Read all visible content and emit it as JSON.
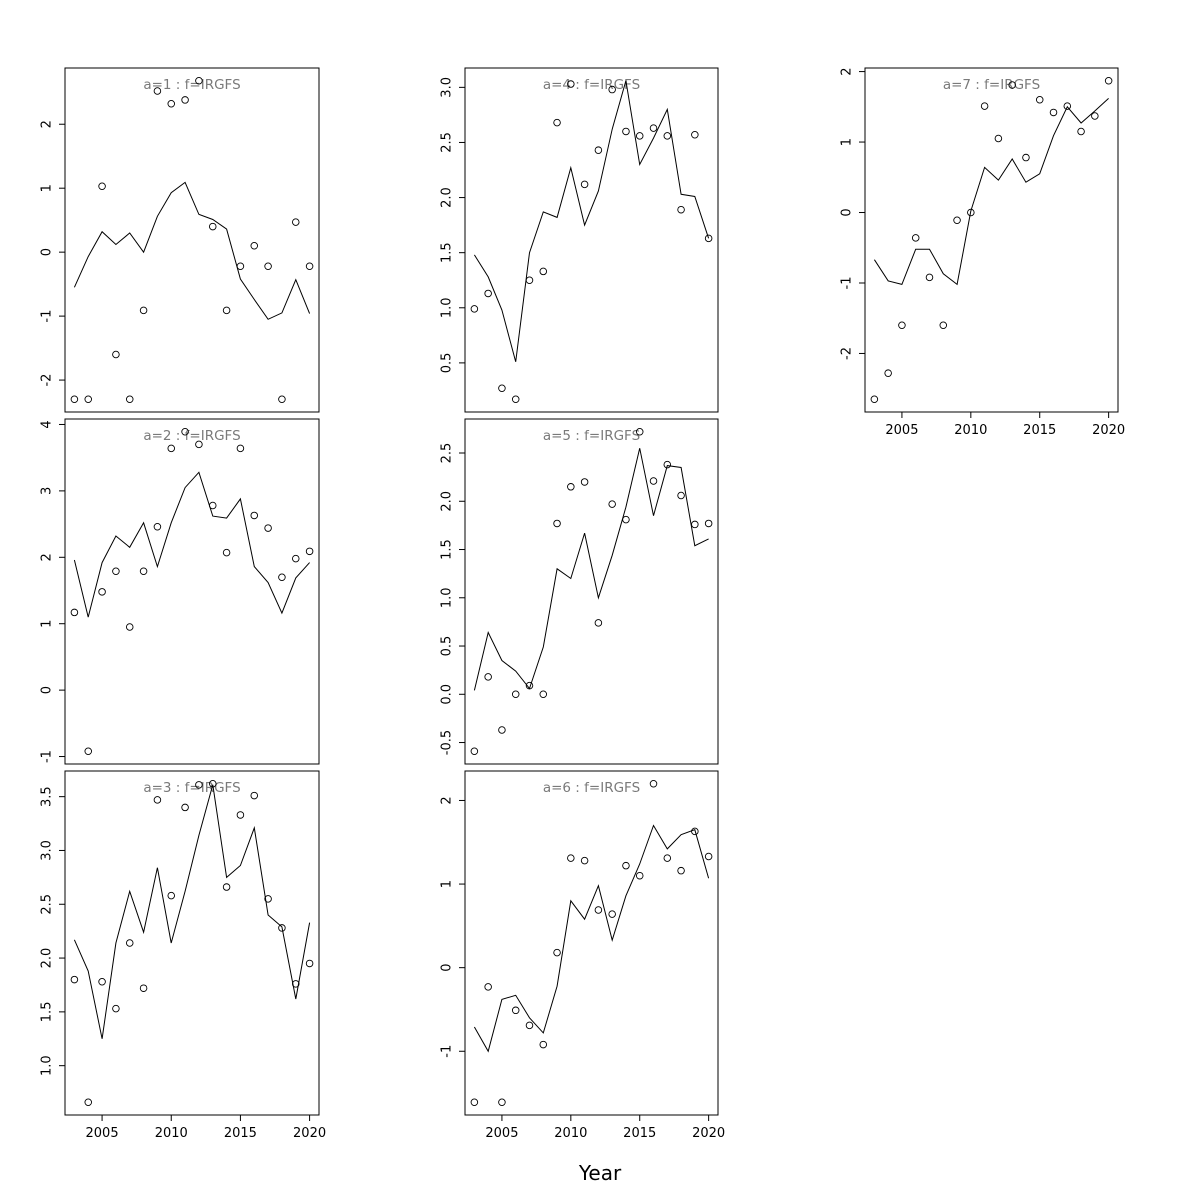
{
  "figure": {
    "xlabel": "Year"
  },
  "chart_data": [
    {
      "type": "scatter",
      "title": "a=1  :  f=IRGFS",
      "x": [
        2003,
        2004,
        2005,
        2006,
        2007,
        2008,
        2009,
        2010,
        2011,
        2012,
        2013,
        2014,
        2015,
        2016,
        2017,
        2018,
        2019,
        2020
      ],
      "series": [
        {
          "mode": "points",
          "values": [
            -2.3,
            -2.3,
            1.03,
            -1.6,
            -2.3,
            -0.91,
            2.52,
            2.32,
            2.38,
            2.68,
            0.4,
            -0.91,
            -0.22,
            0.1,
            -0.22,
            -2.3,
            0.47,
            -0.22
          ]
        },
        {
          "mode": "line",
          "values": [
            -0.55,
            -0.07,
            0.32,
            0.12,
            0.3,
            0.0,
            0.56,
            0.93,
            1.09,
            0.59,
            0.51,
            0.36,
            -0.42,
            -0.74,
            -1.05,
            -0.95,
            -0.43,
            -0.96
          ]
        }
      ],
      "ylim": [
        -2.3,
        2.68
      ],
      "xticks": [],
      "yticks": [
        -2,
        -1,
        0,
        1,
        2
      ],
      "show_xaxis": false
    },
    {
      "type": "scatter",
      "title": "a=2  :  f=IRGFS",
      "x": [
        2003,
        2004,
        2005,
        2006,
        2007,
        2008,
        2009,
        2010,
        2011,
        2012,
        2013,
        2014,
        2015,
        2016,
        2017,
        2018,
        2019,
        2020
      ],
      "series": [
        {
          "mode": "points",
          "values": [
            1.17,
            -0.92,
            1.48,
            1.79,
            0.95,
            1.79,
            2.46,
            3.64,
            3.89,
            3.7,
            2.78,
            2.07,
            3.64,
            2.63,
            2.44,
            1.7,
            1.98,
            2.09
          ]
        },
        {
          "mode": "line",
          "values": [
            1.96,
            1.1,
            1.92,
            2.32,
            2.15,
            2.52,
            1.86,
            2.52,
            3.05,
            3.28,
            2.62,
            2.59,
            2.88,
            1.86,
            1.62,
            1.16,
            1.69,
            1.92
          ]
        }
      ],
      "ylim": [
        -0.92,
        3.89
      ],
      "xticks": [],
      "yticks": [
        -1,
        0,
        1,
        2,
        3,
        4
      ],
      "show_xaxis": false
    },
    {
      "type": "scatter",
      "title": "a=3  :  f=IRGFS",
      "x": [
        2003,
        2004,
        2005,
        2006,
        2007,
        2008,
        2009,
        2010,
        2011,
        2012,
        2013,
        2014,
        2015,
        2016,
        2017,
        2018,
        2019,
        2020
      ],
      "series": [
        {
          "mode": "points",
          "values": [
            1.8,
            0.66,
            1.78,
            1.53,
            2.14,
            1.72,
            3.47,
            2.58,
            3.4,
            3.61,
            3.62,
            2.66,
            3.33,
            3.51,
            2.55,
            2.28,
            1.76,
            1.95
          ]
        },
        {
          "mode": "line",
          "values": [
            2.17,
            1.88,
            1.25,
            2.14,
            2.62,
            2.24,
            2.84,
            2.14,
            2.62,
            3.14,
            3.61,
            2.75,
            2.86,
            3.21,
            2.4,
            2.29,
            1.62,
            2.33
          ]
        }
      ],
      "ylim": [
        0.66,
        3.62
      ],
      "xticks": [
        2005,
        2010,
        2015,
        2020
      ],
      "yticks": [
        1.0,
        1.5,
        2.0,
        2.5,
        3.0,
        3.5
      ],
      "show_xaxis": true
    },
    {
      "type": "scatter",
      "title": "a=4  :  f=IRGFS",
      "x": [
        2003,
        2004,
        2005,
        2006,
        2007,
        2008,
        2009,
        2010,
        2011,
        2012,
        2013,
        2014,
        2015,
        2016,
        2017,
        2018,
        2019,
        2020
      ],
      "series": [
        {
          "mode": "points",
          "values": [
            0.99,
            1.13,
            0.27,
            0.17,
            1.25,
            1.33,
            2.68,
            3.03,
            2.12,
            2.43,
            2.98,
            2.6,
            2.56,
            2.63,
            2.56,
            1.89,
            2.57,
            1.63
          ]
        },
        {
          "mode": "line",
          "values": [
            1.48,
            1.28,
            0.98,
            0.51,
            1.5,
            1.87,
            1.82,
            2.27,
            1.75,
            2.06,
            2.62,
            3.06,
            2.3,
            2.54,
            2.8,
            2.03,
            2.01,
            1.63
          ]
        }
      ],
      "ylim": [
        0.17,
        3.06
      ],
      "xticks": [],
      "yticks": [
        0.5,
        1.0,
        1.5,
        2.0,
        2.5,
        3.0
      ],
      "show_xaxis": false
    },
    {
      "type": "scatter",
      "title": "a=5  :  f=IRGFS",
      "x": [
        2003,
        2004,
        2005,
        2006,
        2007,
        2008,
        2009,
        2010,
        2011,
        2012,
        2013,
        2014,
        2015,
        2016,
        2017,
        2018,
        2019,
        2020
      ],
      "series": [
        {
          "mode": "points",
          "values": [
            -0.59,
            0.18,
            -0.37,
            0.0,
            0.09,
            0.0,
            1.77,
            2.15,
            2.2,
            0.74,
            1.97,
            1.81,
            2.72,
            2.21,
            2.38,
            2.06,
            1.76,
            1.77
          ]
        },
        {
          "mode": "line",
          "values": [
            0.04,
            0.64,
            0.35,
            0.24,
            0.06,
            0.49,
            1.3,
            1.2,
            1.67,
            1.0,
            1.44,
            1.94,
            2.55,
            1.85,
            2.37,
            2.35,
            1.54,
            1.61
          ]
        }
      ],
      "ylim": [
        -0.59,
        2.72
      ],
      "xticks": [],
      "yticks": [
        -0.5,
        0.0,
        0.5,
        1.0,
        1.5,
        2.0,
        2.5
      ],
      "show_xaxis": false
    },
    {
      "type": "scatter",
      "title": "a=6  :  f=IRGFS",
      "x": [
        2003,
        2004,
        2005,
        2006,
        2007,
        2008,
        2009,
        2010,
        2011,
        2012,
        2013,
        2014,
        2015,
        2016,
        2017,
        2018,
        2019,
        2020
      ],
      "series": [
        {
          "mode": "points",
          "values": [
            -1.61,
            -0.23,
            -1.61,
            -0.51,
            -0.69,
            -0.92,
            0.18,
            1.31,
            1.28,
            0.69,
            0.64,
            1.22,
            1.1,
            2.2,
            1.31,
            1.16,
            1.63,
            1.33
          ]
        },
        {
          "mode": "line",
          "values": [
            -0.71,
            -1.0,
            -0.38,
            -0.33,
            -0.6,
            -0.78,
            -0.22,
            0.8,
            0.58,
            0.98,
            0.33,
            0.86,
            1.24,
            1.7,
            1.42,
            1.59,
            1.65,
            1.07
          ]
        }
      ],
      "ylim": [
        -1.61,
        2.2
      ],
      "xticks": [
        2005,
        2010,
        2015,
        2020
      ],
      "yticks": [
        -1,
        0,
        1,
        2
      ],
      "show_xaxis": true
    },
    {
      "type": "scatter",
      "title": "a=7  :  f=IRGFS",
      "x": [
        2003,
        2004,
        2005,
        2006,
        2007,
        2008,
        2009,
        2010,
        2011,
        2012,
        2013,
        2014,
        2015,
        2016,
        2017,
        2018,
        2019,
        2020
      ],
      "series": [
        {
          "mode": "points",
          "values": [
            -2.65,
            -2.28,
            -1.6,
            -0.36,
            -0.92,
            -1.6,
            -0.11,
            0.0,
            1.51,
            1.05,
            1.81,
            0.78,
            1.6,
            1.42,
            1.51,
            1.15,
            1.37,
            1.87
          ]
        },
        {
          "mode": "line",
          "values": [
            -0.67,
            -0.97,
            -1.02,
            -0.52,
            -0.52,
            -0.87,
            -1.02,
            0.02,
            0.64,
            0.46,
            0.76,
            0.43,
            0.55,
            1.09,
            1.5,
            1.27,
            1.44,
            1.62
          ]
        }
      ],
      "ylim": [
        -2.65,
        1.87
      ],
      "xticks": [
        2005,
        2010,
        2015,
        2020
      ],
      "yticks": [
        -2,
        -1,
        0,
        1,
        2
      ],
      "show_xaxis": true
    }
  ]
}
